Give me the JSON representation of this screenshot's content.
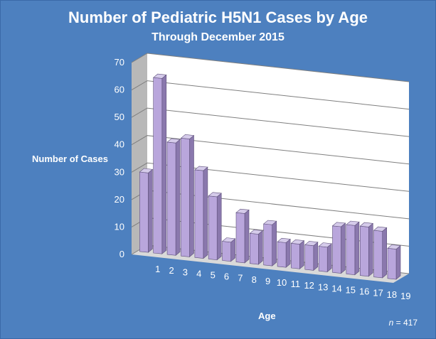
{
  "chart_data": {
    "type": "bar",
    "title": "Number of Pediatric H5N1 Cases by Age",
    "subtitle": "Through December 2015",
    "xlabel": "Age",
    "ylabel": "Number of Cases",
    "ylim": [
      0,
      70
    ],
    "yticks": [
      "0",
      "10",
      "20",
      "30",
      "40",
      "50",
      "60",
      "70"
    ],
    "categories": [
      "1",
      "2",
      "3",
      "4",
      "5",
      "6",
      "7",
      "8",
      "9",
      "10",
      "11",
      "12",
      "13",
      "14",
      "15",
      "16",
      "17",
      "18",
      "19"
    ],
    "values": [
      29,
      64,
      41,
      43,
      32,
      23,
      7,
      18,
      11,
      15,
      9,
      9,
      9,
      9,
      17,
      18,
      18,
      17,
      11
    ],
    "grid": true,
    "bar_color": "#b9a6dc",
    "note_prefix": "n",
    "note_value": " = 417"
  }
}
